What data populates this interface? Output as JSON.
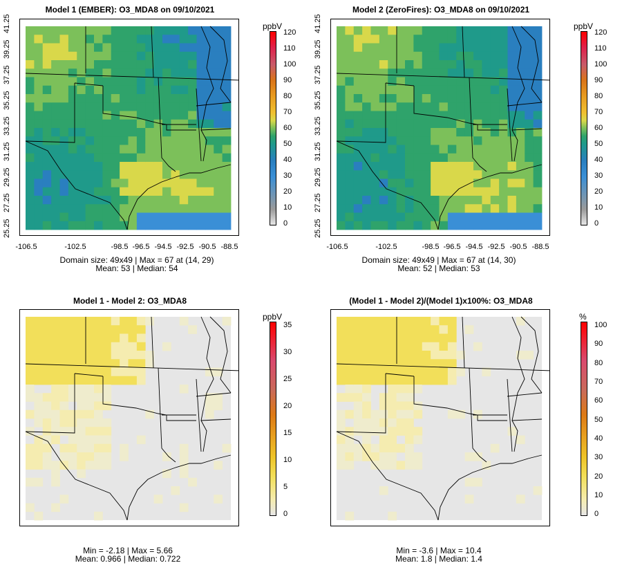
{
  "panels": [
    {
      "title": "Model 1 (EMBER): O3_MDA8 on 09/10/2021",
      "kind": "abs",
      "stats_line1": "Domain size: 49x49 | Max = 67 at (14, 29)",
      "stats_line2": "Mean: 53 |  Median: 54",
      "colorbar": {
        "unit": "ppbV",
        "ticks": [
          "0",
          "10",
          "20",
          "30",
          "40",
          "50",
          "60",
          "70",
          "80",
          "90",
          "100",
          "110",
          "120"
        ]
      },
      "yticks": [
        "41.25",
        "39.25",
        "37.25",
        "35.25",
        "33.25",
        "31.25",
        "29.25",
        "27.25",
        "25.25"
      ],
      "xticks": [
        "-106.5",
        "-102.5",
        "-98.5",
        "-96.5",
        "-94.5",
        "-92.5",
        "-90.5",
        "-88.5"
      ]
    },
    {
      "title": "Model 2 (ZeroFires): O3_MDA8 on 09/10/2021",
      "kind": "abs",
      "stats_line1": "Domain size: 49x49 | Max = 67 at (14, 30)",
      "stats_line2": "Mean: 52 |  Median: 53",
      "colorbar": {
        "unit": "ppbV",
        "ticks": [
          "0",
          "10",
          "20",
          "30",
          "40",
          "50",
          "60",
          "70",
          "80",
          "90",
          "100",
          "110",
          "120"
        ]
      },
      "yticks": [
        "41.25",
        "39.25",
        "37.25",
        "35.25",
        "33.25",
        "31.25",
        "29.25",
        "27.25",
        "25.25"
      ],
      "xticks": [
        "-106.5",
        "-102.5",
        "-98.5",
        "-96.5",
        "-94.5",
        "-92.5",
        "-90.5",
        "-88.5"
      ]
    },
    {
      "title": "Model 1 - Model 2: O3_MDA8",
      "kind": "diff",
      "stats_line1": "Min = -2.18 | Max = 5.66",
      "stats_line2": "Mean: 0.966 |  Median: 0.722",
      "colorbar": {
        "unit": "ppbV",
        "ticks": [
          "0",
          "5",
          "10",
          "15",
          "20",
          "25",
          "30",
          "35"
        ]
      },
      "yticks": [],
      "xticks": []
    },
    {
      "title": "(Model 1 - Model 2)/(Model 1)x100%: O3_MDA8",
      "kind": "pct",
      "stats_line1": "Min = -3.6 | Max = 10.4",
      "stats_line2": "Mean: 1.8 |  Median: 1.4",
      "colorbar": {
        "unit": "%",
        "ticks": [
          "0",
          "10",
          "20",
          "30",
          "40",
          "50",
          "60",
          "70",
          "80",
          "90",
          "100"
        ]
      },
      "yticks": [],
      "xticks": []
    }
  ],
  "colors": {
    "abs_scale": [
      "#e6e6e6",
      "#9a9a9a",
      "#3a8fd6",
      "#2a7fbf",
      "#1f9a8a",
      "#2fa36b",
      "#7cc05a",
      "#d9d84a",
      "#f0c030",
      "#e79a20",
      "#d9741a",
      "#c85a6a",
      "#e0204a",
      "#ff0000"
    ],
    "diff_scale": [
      "#e6e6e6",
      "#f5ecb0",
      "#f2df5a",
      "#eec428",
      "#e8a320",
      "#dd7a16",
      "#c96a5a",
      "#d94a6e",
      "#ff0000"
    ]
  }
}
